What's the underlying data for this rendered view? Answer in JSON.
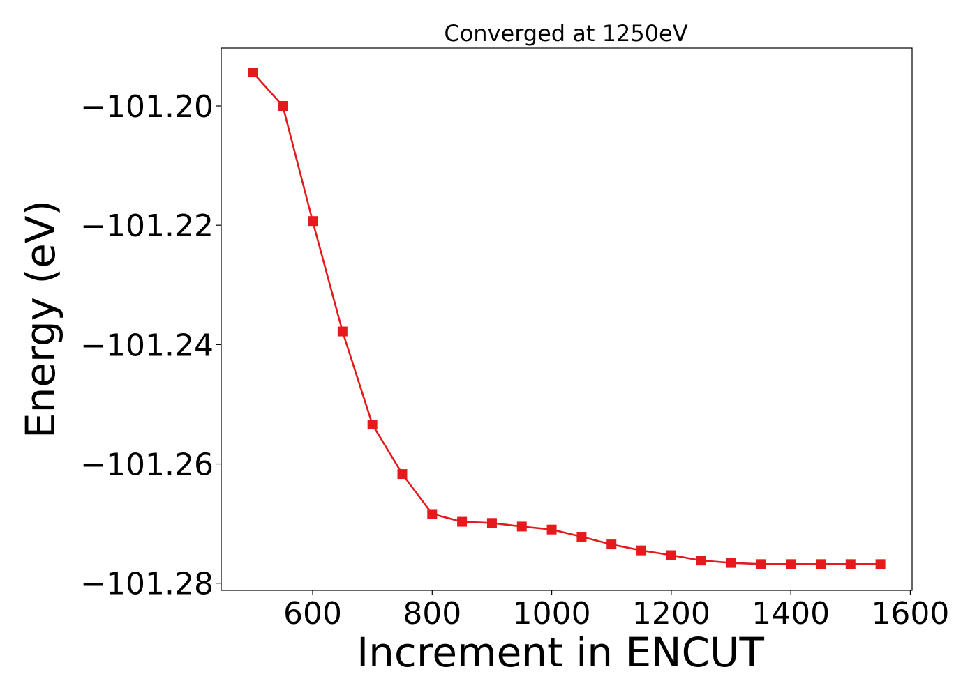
{
  "colors": {
    "series": "#e41a1c",
    "axis": "#000000",
    "background": "#ffffff"
  },
  "chart_data": {
    "type": "line",
    "title": "Converged at 1250eV",
    "xlabel": "Increment in ENCUT",
    "ylabel": "Energy (eV)",
    "xlim": [
      447,
      1603
    ],
    "ylim": [
      -101.2812,
      -101.1903
    ],
    "xticks": [
      600,
      800,
      1000,
      1200,
      1400,
      1600
    ],
    "xtick_labels": [
      "600",
      "800",
      "1000",
      "1200",
      "1400",
      "1600"
    ],
    "yticks": [
      -101.28,
      -101.26,
      -101.24,
      -101.22,
      -101.2
    ],
    "ytick_labels": [
      "−101.28",
      "−101.26",
      "−101.24",
      "−101.22",
      "−101.20"
    ],
    "grid": false,
    "legend": "none",
    "series": [
      {
        "marker": "square",
        "x": [
          500,
          550,
          600,
          650,
          700,
          750,
          800,
          850,
          900,
          950,
          1000,
          1050,
          1100,
          1150,
          1200,
          1250,
          1300,
          1350,
          1400,
          1450,
          1500,
          1550
        ],
        "y": [
          -101.1944,
          -101.2,
          -101.2193,
          -101.2378,
          -101.2534,
          -101.2617,
          -101.2684,
          -101.2697,
          -101.2699,
          -101.2705,
          -101.271,
          -101.2722,
          -101.2735,
          -101.2745,
          -101.2753,
          -101.2762,
          -101.2766,
          -101.2768,
          -101.2768,
          -101.2768,
          -101.2768,
          -101.2768
        ]
      }
    ]
  }
}
